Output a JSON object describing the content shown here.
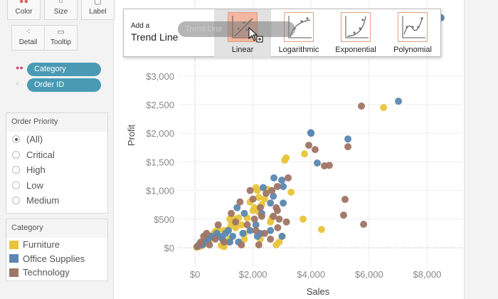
{
  "marks": {
    "buttons": [
      {
        "label": "Color",
        "icon": "color-dots-icon"
      },
      {
        "label": "Size",
        "icon": "size-icon"
      },
      {
        "label": "Label",
        "icon": "label-icon"
      },
      {
        "label": "Detail",
        "icon": "detail-icon"
      },
      {
        "label": "Tooltip",
        "icon": "tooltip-icon"
      }
    ],
    "pills": [
      {
        "label": "Category",
        "icon": "color-dots-icon"
      },
      {
        "label": "Order ID",
        "icon": "detail-icon"
      }
    ]
  },
  "filter": {
    "title": "Order Priority",
    "options": [
      "(All)",
      "Critical",
      "High",
      "Low",
      "Medium"
    ],
    "selected": "(All)"
  },
  "legend": {
    "title": "Category",
    "items": [
      {
        "label": "Furniture",
        "color": "#e8c43c"
      },
      {
        "label": "Office Supplies",
        "color": "#5b87b1"
      },
      {
        "label": "Technology",
        "color": "#9f7565"
      }
    ]
  },
  "trend_popup": {
    "title_small": "Add a",
    "title_large": "Trend Line",
    "drag_label": "Trend Line",
    "options": [
      "Linear",
      "Logarithmic",
      "Exponential",
      "Polynomial"
    ],
    "hovered": "Linear"
  },
  "chart_data": {
    "type": "scatter",
    "xlabel": "Sales",
    "ylabel": "Profit",
    "xlim": [
      -590,
      9215
    ],
    "ylim": [
      -336,
      4328
    ],
    "xticks": [
      0,
      2000,
      4000,
      6000,
      8000
    ],
    "xtick_labels": [
      "$0",
      "$2,000",
      "$4,000",
      "$6,000",
      "$8,000"
    ],
    "yticks": [
      0,
      500,
      1000,
      1500,
      2000,
      2500,
      3000
    ],
    "ytick_labels": [
      "$0",
      "$500",
      "$1,000",
      "$1,500",
      "$2,000",
      "$2,500",
      "$3,000"
    ],
    "grid": true,
    "series": [
      {
        "name": "Furniture",
        "color": "#e8c43c",
        "points": [
          [
            50,
            10
          ],
          [
            100,
            30
          ],
          [
            150,
            20
          ],
          [
            200,
            50
          ],
          [
            250,
            40
          ],
          [
            300,
            60
          ],
          [
            350,
            80
          ],
          [
            400,
            100
          ],
          [
            450,
            120
          ],
          [
            500,
            150
          ],
          [
            550,
            180
          ],
          [
            600,
            200
          ],
          [
            650,
            250
          ],
          [
            700,
            280
          ],
          [
            750,
            300
          ],
          [
            800,
            320
          ],
          [
            900,
            40
          ],
          [
            1000,
            20
          ],
          [
            1100,
            100
          ],
          [
            1200,
            150
          ],
          [
            1250,
            400
          ],
          [
            1300,
            450
          ],
          [
            1350,
            500
          ],
          [
            1400,
            350
          ],
          [
            1500,
            520
          ],
          [
            1700,
            250
          ],
          [
            1700,
            150
          ],
          [
            1800,
            520
          ],
          [
            1900,
            800
          ],
          [
            2000,
            650
          ],
          [
            2050,
            700
          ],
          [
            2100,
            1050
          ],
          [
            2150,
            1000
          ],
          [
            2200,
            880
          ],
          [
            2300,
            750
          ],
          [
            2250,
            150
          ],
          [
            2400,
            850
          ],
          [
            2500,
            1020
          ],
          [
            2600,
            450
          ],
          [
            2650,
            520
          ],
          [
            2800,
            50
          ],
          [
            2900,
            100
          ],
          [
            3000,
            200
          ],
          [
            3090,
            1530
          ],
          [
            3140,
            1570
          ],
          [
            3310,
            970
          ],
          [
            3775,
            1640
          ],
          [
            3725,
            500
          ],
          [
            4360,
            320
          ],
          [
            6495,
            2450
          ],
          [
            1150,
            320
          ],
          [
            1600,
            400
          ],
          [
            2200,
            620
          ],
          [
            1000,
            300
          ],
          [
            1200,
            500
          ]
        ]
      },
      {
        "name": "Office Supplies",
        "color": "#5b87b1",
        "points": [
          [
            80,
            20
          ],
          [
            150,
            60
          ],
          [
            250,
            50
          ],
          [
            350,
            100
          ],
          [
            450,
            150
          ],
          [
            550,
            200
          ],
          [
            650,
            180
          ],
          [
            750,
            250
          ],
          [
            850,
            200
          ],
          [
            950,
            150
          ],
          [
            1050,
            250
          ],
          [
            1150,
            300
          ],
          [
            1300,
            200
          ],
          [
            1450,
            700
          ],
          [
            1500,
            100
          ],
          [
            1700,
            600
          ],
          [
            1650,
            250
          ],
          [
            2100,
            400
          ],
          [
            2150,
            200
          ],
          [
            2250,
            250
          ],
          [
            2300,
            600
          ],
          [
            2350,
            1050
          ],
          [
            2600,
            300
          ],
          [
            2700,
            900
          ],
          [
            2720,
            1220
          ],
          [
            2990,
            1180
          ],
          [
            3040,
            1070
          ],
          [
            3040,
            780
          ],
          [
            3000,
            200
          ],
          [
            2600,
            780
          ],
          [
            3990,
            2010
          ],
          [
            4000,
            2000
          ],
          [
            4215,
            1480
          ],
          [
            5270,
            1900
          ],
          [
            7010,
            2560
          ],
          [
            8480,
            4017
          ],
          [
            1900,
            300
          ],
          [
            1200,
            100
          ]
        ]
      },
      {
        "name": "Technology",
        "color": "#9f7565",
        "points": [
          [
            100,
            30
          ],
          [
            200,
            100
          ],
          [
            300,
            200
          ],
          [
            400,
            250
          ],
          [
            500,
            50
          ],
          [
            700,
            150
          ],
          [
            800,
            400
          ],
          [
            1000,
            100
          ],
          [
            1250,
            600
          ],
          [
            1400,
            450
          ],
          [
            1550,
            800
          ],
          [
            1600,
            50
          ],
          [
            1900,
            1000
          ],
          [
            2000,
            850
          ],
          [
            2050,
            500
          ],
          [
            2100,
            300
          ],
          [
            2200,
            50
          ],
          [
            2250,
            700
          ],
          [
            2300,
            550
          ],
          [
            2400,
            250
          ],
          [
            2450,
            950
          ],
          [
            2600,
            150
          ],
          [
            2700,
            550
          ],
          [
            2800,
            700
          ],
          [
            2840,
            1070
          ],
          [
            2840,
            650
          ],
          [
            2850,
            350
          ],
          [
            2900,
            500
          ],
          [
            3210,
            1220
          ],
          [
            3150,
            450
          ],
          [
            3920,
            1790
          ],
          [
            4140,
            1715
          ],
          [
            4460,
            1430
          ],
          [
            4630,
            1440
          ],
          [
            5270,
            1765
          ],
          [
            5170,
            845
          ],
          [
            5120,
            570
          ],
          [
            5810,
            410
          ],
          [
            5735,
            2475
          ],
          [
            1800,
            400
          ],
          [
            2650,
            1000
          ]
        ]
      }
    ]
  }
}
